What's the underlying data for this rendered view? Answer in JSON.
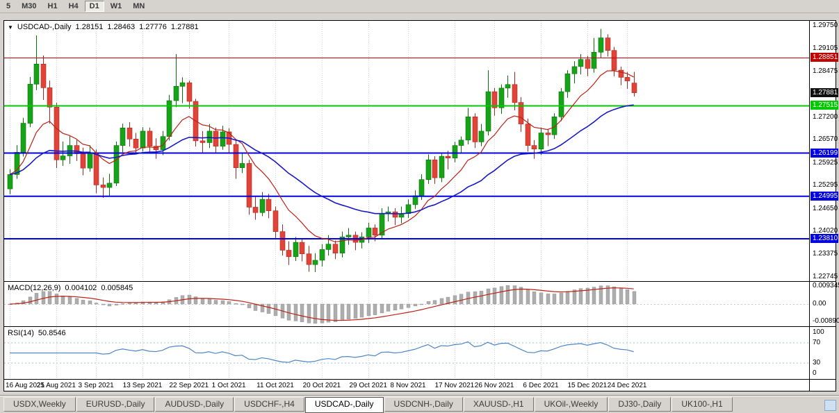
{
  "window": {
    "bg": "#D6D3CE"
  },
  "toolbar": {
    "periods": [
      {
        "label": "5",
        "active": false
      },
      {
        "label": "M30",
        "active": false
      },
      {
        "label": "H1",
        "active": false
      },
      {
        "label": "H4",
        "active": false
      },
      {
        "label": "D1",
        "active": true
      },
      {
        "label": "W1",
        "active": false
      },
      {
        "label": "MN",
        "active": false
      }
    ]
  },
  "chart_info": {
    "symbol": "USDCAD-,Daily",
    "open": "1.28151",
    "high": "1.28463",
    "low": "1.27776",
    "close": "1.27881"
  },
  "macd_info": {
    "label": "MACD(12,26,9)",
    "value": "0.004102",
    "signal": "0.005845"
  },
  "rsi_info": {
    "label": "RSI(14)",
    "value": "50.8546"
  },
  "price_scale": {
    "ticks": [
      "1.29750",
      "1.29105",
      "1.28475",
      "1.27830",
      "1.27200",
      "1.26570",
      "1.25925",
      "1.25295",
      "1.24650",
      "1.24020",
      "1.23375",
      "1.22745"
    ]
  },
  "macd_scale": {
    "ticks": [
      "0.009345",
      "0.00",
      "-0.00890"
    ]
  },
  "rsi_scale": {
    "ticks": [
      "100",
      "70",
      "30",
      "0"
    ]
  },
  "current_price_tag": {
    "label": "1.27881",
    "value": 1.27881,
    "color": "#101010"
  },
  "grid_color": "#D4D4D4",
  "candle_colors": {
    "up": "#17A317",
    "up_stroke": "#0A6E0A",
    "down": "#E04438",
    "down_stroke": "#A8281E"
  },
  "tabs": [
    {
      "label": "USDX,Weekly",
      "active": false
    },
    {
      "label": "EURUSD-,Daily",
      "active": false
    },
    {
      "label": "AUDUSD-,Daily",
      "active": false
    },
    {
      "label": "USDCHF-,H4",
      "active": false
    },
    {
      "label": "USDCAD-,Daily",
      "active": true
    },
    {
      "label": "USDCNH-,Daily",
      "active": false
    },
    {
      "label": "XAUUSD-,H1",
      "active": false
    },
    {
      "label": "UKOil-,Weekly",
      "active": false
    },
    {
      "label": "DJ30-,Daily",
      "active": false
    },
    {
      "label": "UK100-,H1",
      "active": false
    }
  ],
  "chart_data": {
    "type": "candlestick",
    "title": "USDCAD-,Daily",
    "ohlc_display": [
      1.28151,
      1.28463,
      1.27776,
      1.27881
    ],
    "current_price": 1.27881,
    "ylim": [
      1.2265,
      1.299
    ],
    "grid": true,
    "date_ticks": [
      {
        "label": "16 Aug 2021",
        "index": 0
      },
      {
        "label": "25 Aug 2021",
        "index": 7
      },
      {
        "label": "3 Sep 2021",
        "index": 13
      },
      {
        "label": "13 Sep 2021",
        "index": 20
      },
      {
        "label": "22 Sep 2021",
        "index": 27
      },
      {
        "label": "1 Oct 2021",
        "index": 33
      },
      {
        "label": "11 Oct 2021",
        "index": 40
      },
      {
        "label": "20 Oct 2021",
        "index": 47
      },
      {
        "label": "29 Oct 2021",
        "index": 54
      },
      {
        "label": "8 Nov 2021",
        "index": 60
      },
      {
        "label": "17 Nov 2021",
        "index": 67
      },
      {
        "label": "26 Nov 2021",
        "index": 73
      },
      {
        "label": "6 Dec 2021",
        "index": 80
      },
      {
        "label": "15 Dec 2021",
        "index": 87
      },
      {
        "label": "24 Dec 2021",
        "index": 93
      }
    ],
    "hlines": [
      {
        "label": "1.28851",
        "value": 1.28851,
        "color": "#C00000",
        "width": 1
      },
      {
        "label": "1.27515",
        "value": 1.27515,
        "color": "#00C800",
        "width": 2
      },
      {
        "label": "1.26199",
        "value": 1.26199,
        "color": "#0000E0",
        "width": 2
      },
      {
        "label": "1.24995",
        "value": 1.24995,
        "color": "#0000E0",
        "width": 2
      },
      {
        "label": "1.23810",
        "value": 1.2381,
        "color": "#0000E0",
        "width": 2
      }
    ],
    "overlays": {
      "ma_fast": {
        "type": "EMA",
        "period": 10,
        "color": "#BE2014"
      },
      "ma_slow": {
        "type": "EMA",
        "period": 30,
        "color": "#1818C8"
      }
    },
    "macd": {
      "fast": 12,
      "slow": 26,
      "signal": 9,
      "bar_color": "#ADADAD",
      "line_color": "#BE2014",
      "value": 0.004102,
      "signal_value": 0.005845
    },
    "rsi": {
      "period": 14,
      "color": "#4C86C8",
      "levels": [
        70,
        30
      ],
      "level_color": "#A9C4DE",
      "value": 50.8546
    },
    "candles": [
      [
        1.252,
        1.2575,
        1.2505,
        1.256
      ],
      [
        1.256,
        1.2642,
        1.2548,
        1.2622
      ],
      [
        1.2622,
        1.2718,
        1.261,
        1.2703
      ],
      [
        1.2703,
        1.2832,
        1.2692,
        1.2812
      ],
      [
        1.2812,
        1.2948,
        1.2795,
        1.2868
      ],
      [
        1.2868,
        1.2892,
        1.2768,
        1.2802
      ],
      [
        1.2802,
        1.2822,
        1.2702,
        1.2748
      ],
      [
        1.2748,
        1.276,
        1.2578,
        1.2601
      ],
      [
        1.2601,
        1.2652,
        1.2584,
        1.2612
      ],
      [
        1.2612,
        1.2668,
        1.259,
        1.2641
      ],
      [
        1.2641,
        1.2656,
        1.2598,
        1.2618
      ],
      [
        1.2618,
        1.2635,
        1.2558,
        1.2578
      ],
      [
        1.2578,
        1.2642,
        1.2568,
        1.2621
      ],
      [
        1.2621,
        1.263,
        1.2508,
        1.2531
      ],
      [
        1.2531,
        1.2552,
        1.2495,
        1.2524
      ],
      [
        1.2524,
        1.2562,
        1.25,
        1.2536
      ],
      [
        1.2536,
        1.2652,
        1.2528,
        1.2641
      ],
      [
        1.2641,
        1.2702,
        1.2622,
        1.269
      ],
      [
        1.269,
        1.2706,
        1.2638,
        1.2659
      ],
      [
        1.2659,
        1.2676,
        1.2618,
        1.2634
      ],
      [
        1.2634,
        1.2692,
        1.2624,
        1.2681
      ],
      [
        1.2681,
        1.2691,
        1.2619,
        1.2639
      ],
      [
        1.2639,
        1.2661,
        1.2604,
        1.2629
      ],
      [
        1.2629,
        1.2681,
        1.2614,
        1.2666
      ],
      [
        1.2666,
        1.2782,
        1.2655,
        1.2766
      ],
      [
        1.2766,
        1.2896,
        1.2748,
        1.2806
      ],
      [
        1.2806,
        1.2831,
        1.2759,
        1.2816
      ],
      [
        1.2816,
        1.2822,
        1.2744,
        1.2764
      ],
      [
        1.2764,
        1.2771,
        1.2638,
        1.2654
      ],
      [
        1.2654,
        1.2681,
        1.2619,
        1.2649
      ],
      [
        1.2649,
        1.2701,
        1.2634,
        1.2681
      ],
      [
        1.2681,
        1.2691,
        1.2618,
        1.2639
      ],
      [
        1.2639,
        1.2696,
        1.2629,
        1.2679
      ],
      [
        1.2679,
        1.2689,
        1.2619,
        1.2644
      ],
      [
        1.2644,
        1.2655,
        1.2548,
        1.2579
      ],
      [
        1.2579,
        1.2621,
        1.2564,
        1.2591
      ],
      [
        1.2591,
        1.2601,
        1.2448,
        1.2469
      ],
      [
        1.2469,
        1.2501,
        1.2434,
        1.2454
      ],
      [
        1.2454,
        1.2511,
        1.2444,
        1.2491
      ],
      [
        1.2491,
        1.2506,
        1.2438,
        1.2459
      ],
      [
        1.2459,
        1.2471,
        1.2383,
        1.2401
      ],
      [
        1.2401,
        1.2421,
        1.2334,
        1.2349
      ],
      [
        1.2349,
        1.2374,
        1.2308,
        1.2331
      ],
      [
        1.2331,
        1.2386,
        1.2319,
        1.2371
      ],
      [
        1.2371,
        1.2381,
        1.2318,
        1.2339
      ],
      [
        1.2339,
        1.2361,
        1.2289,
        1.2309
      ],
      [
        1.2309,
        1.2341,
        1.2288,
        1.2321
      ],
      [
        1.2321,
        1.2366,
        1.2304,
        1.2351
      ],
      [
        1.2351,
        1.2391,
        1.2334,
        1.2366
      ],
      [
        1.2366,
        1.2376,
        1.2324,
        1.2341
      ],
      [
        1.2341,
        1.2401,
        1.2329,
        1.2386
      ],
      [
        1.2386,
        1.2411,
        1.2364,
        1.2391
      ],
      [
        1.2391,
        1.2401,
        1.2349,
        1.2371
      ],
      [
        1.2371,
        1.2399,
        1.2354,
        1.2386
      ],
      [
        1.2386,
        1.2426,
        1.2369,
        1.2411
      ],
      [
        1.2411,
        1.2421,
        1.2374,
        1.2391
      ],
      [
        1.2391,
        1.2466,
        1.2379,
        1.2451
      ],
      [
        1.2451,
        1.2471,
        1.2429,
        1.2456
      ],
      [
        1.2456,
        1.2466,
        1.2419,
        1.2441
      ],
      [
        1.2441,
        1.2471,
        1.2424,
        1.2451
      ],
      [
        1.2451,
        1.2491,
        1.2439,
        1.2476
      ],
      [
        1.2476,
        1.2516,
        1.2464,
        1.2501
      ],
      [
        1.2501,
        1.2561,
        1.2489,
        1.2546
      ],
      [
        1.2546,
        1.2616,
        1.2534,
        1.2601
      ],
      [
        1.2601,
        1.2611,
        1.2534,
        1.2551
      ],
      [
        1.2551,
        1.2621,
        1.2539,
        1.2611
      ],
      [
        1.2611,
        1.2626,
        1.2574,
        1.2606
      ],
      [
        1.2606,
        1.2651,
        1.2594,
        1.2641
      ],
      [
        1.2641,
        1.2666,
        1.2619,
        1.2656
      ],
      [
        1.2656,
        1.2746,
        1.2644,
        1.2721
      ],
      [
        1.2721,
        1.2731,
        1.2634,
        1.2651
      ],
      [
        1.2651,
        1.2701,
        1.2639,
        1.2681
      ],
      [
        1.2681,
        1.2851,
        1.2669,
        1.2791
      ],
      [
        1.2791,
        1.2801,
        1.2724,
        1.2746
      ],
      [
        1.2746,
        1.2811,
        1.2729,
        1.2801
      ],
      [
        1.2801,
        1.2836,
        1.2774,
        1.2811
      ],
      [
        1.2811,
        1.2846,
        1.2739,
        1.2761
      ],
      [
        1.2761,
        1.2776,
        1.2679,
        1.2701
      ],
      [
        1.2701,
        1.2716,
        1.2624,
        1.2641
      ],
      [
        1.2641,
        1.2656,
        1.2604,
        1.2631
      ],
      [
        1.2631,
        1.2691,
        1.2614,
        1.2676
      ],
      [
        1.2676,
        1.2686,
        1.2639,
        1.2671
      ],
      [
        1.2671,
        1.2731,
        1.2659,
        1.2721
      ],
      [
        1.2721,
        1.2801,
        1.2709,
        1.2791
      ],
      [
        1.2791,
        1.2851,
        1.2774,
        1.2841
      ],
      [
        1.2841,
        1.2876,
        1.2814,
        1.2861
      ],
      [
        1.2861,
        1.2896,
        1.2839,
        1.2881
      ],
      [
        1.2881,
        1.2891,
        1.2834,
        1.2856
      ],
      [
        1.2856,
        1.2941,
        1.2844,
        1.2901
      ],
      [
        1.2901,
        1.2966,
        1.2884,
        1.2941
      ],
      [
        1.2941,
        1.2951,
        1.2889,
        1.2906
      ],
      [
        1.2906,
        1.2916,
        1.2834,
        1.2851
      ],
      [
        1.2851,
        1.2861,
        1.2809,
        1.2831
      ],
      [
        1.2831,
        1.2846,
        1.2799,
        1.2821
      ],
      [
        1.28151,
        1.28463,
        1.27776,
        1.27881
      ]
    ]
  }
}
